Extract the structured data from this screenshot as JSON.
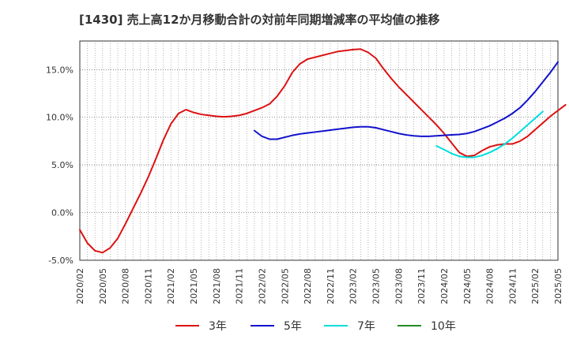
{
  "chart_data": {
    "type": "line",
    "title": "[1430]  売上高12か月移動合計の対前年同期増減率の平均値の推移",
    "xlabel": "",
    "ylabel": "",
    "ylim": [
      -5,
      18
    ],
    "yticks": [
      -5,
      0,
      5,
      10,
      15
    ],
    "ytick_labels": [
      "-5.0%",
      "0.0%",
      "5.0%",
      "10.0%",
      "15.0%"
    ],
    "xticks": [
      "2020/02",
      "2020/05",
      "2020/08",
      "2020/11",
      "2021/02",
      "2021/05",
      "2021/08",
      "2021/11",
      "2022/02",
      "2022/05",
      "2022/08",
      "2022/11",
      "2023/02",
      "2023/05",
      "2023/08",
      "2023/11",
      "2024/02",
      "2024/05",
      "2024/08",
      "2024/11",
      "2025/02",
      "2025/05"
    ],
    "x_start": "2020/02",
    "x_end": "2025/05",
    "grid": true,
    "legend_position": "bottom",
    "series": [
      {
        "name": "3年",
        "color": "#dd1111",
        "start": "2020/02",
        "values": [
          -1.8,
          -3.2,
          -4.0,
          -4.2,
          -3.7,
          -2.7,
          -1.2,
          0.4,
          2.0,
          3.7,
          5.6,
          7.6,
          9.3,
          10.4,
          10.8,
          10.5,
          10.3,
          10.2,
          10.1,
          10.05,
          10.1,
          10.2,
          10.4,
          10.7,
          11.0,
          11.4,
          12.2,
          13.3,
          14.7,
          15.6,
          16.1,
          16.3,
          16.5,
          16.7,
          16.9,
          17.0,
          17.1,
          17.15,
          16.8,
          16.2,
          15.1,
          14.1,
          13.2,
          12.4,
          11.6,
          10.8,
          10.0,
          9.2,
          8.3,
          7.3,
          6.3,
          5.9,
          6.0,
          6.5,
          6.9,
          7.1,
          7.2,
          7.2,
          7.5,
          8.0,
          8.7,
          9.4,
          10.1,
          10.7,
          11.3
        ]
      },
      {
        "name": "5年",
        "color": "#1111cc",
        "start": "2022/01",
        "values": [
          8.6,
          8.0,
          7.7,
          7.7,
          7.9,
          8.1,
          8.25,
          8.35,
          8.45,
          8.55,
          8.65,
          8.75,
          8.85,
          8.95,
          9.0,
          9.0,
          8.9,
          8.7,
          8.5,
          8.3,
          8.15,
          8.05,
          8.0,
          8.0,
          8.05,
          8.1,
          8.15,
          8.2,
          8.3,
          8.5,
          8.8,
          9.1,
          9.5,
          9.9,
          10.4,
          11.0,
          11.8,
          12.7,
          13.7,
          14.7,
          15.8
        ]
      },
      {
        "name": "7年",
        "color": "#00dddd",
        "start": "2024/01",
        "values": [
          7.0,
          6.6,
          6.2,
          5.9,
          5.8,
          5.8,
          6.0,
          6.3,
          6.7,
          7.2,
          7.8,
          8.5,
          9.2,
          9.9,
          10.6
        ]
      },
      {
        "name": "10年",
        "color": "#228b22",
        "start": "2025/02",
        "values": []
      }
    ]
  }
}
